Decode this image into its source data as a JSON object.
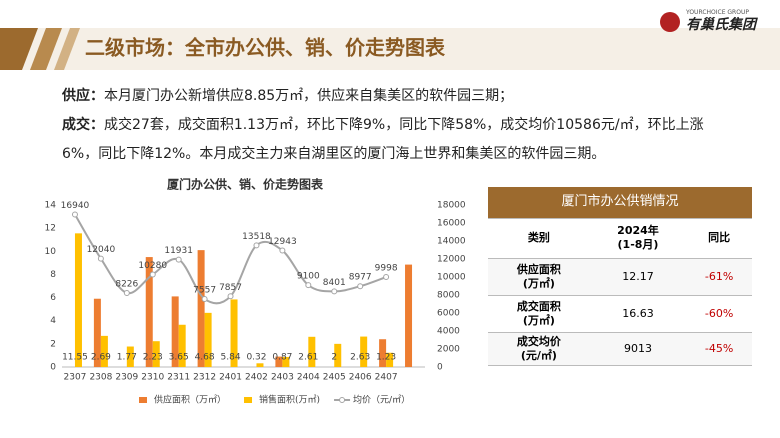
{
  "header": {
    "title": "二级市场：全市办公供、销、价走势图表",
    "logo": "有巢氏集团",
    "logo_sub": "YOURCHOICE GROUP"
  },
  "paragraphs": [
    {
      "label": "供应：",
      "text": "本月厦门办公新增供应8.85万㎡，供应来自集美区的软件园三期；"
    },
    {
      "label": "成交：",
      "text": "成交27套，成交面积1.13万㎡，环比下降9%，同比下降58%，成交均价10586元/㎡，环比上涨6%，同比下降12%。本月成交主力来自湖里区的厦门海上世界和集美区的软件园三期。"
    }
  ],
  "chart_data": {
    "type": "bar",
    "title": "厦门办公供、销、价走势图表",
    "categories": [
      "2307",
      "2308",
      "2309",
      "2310",
      "2311",
      "2312",
      "2401",
      "2402",
      "2403",
      "2404",
      "2405",
      "2406",
      "2407",
      null
    ],
    "series": [
      {
        "name": "供应面积（万㎡）",
        "color": "#ed7d31",
        "values": [
          0,
          5.9,
          0,
          9.5,
          6.1,
          10.1,
          0,
          0,
          0.9,
          0,
          0,
          0,
          2.4,
          8.85
        ]
      },
      {
        "name": "销售面积(万㎡)",
        "color": "#ffc000",
        "values": [
          11.55,
          2.69,
          1.77,
          2.23,
          3.65,
          4.68,
          5.84,
          0.32,
          0.87,
          2.61,
          2,
          2.63,
          1.23,
          null
        ]
      },
      {
        "name": "均价（元/㎡）",
        "color": "#a5a5a5",
        "type": "line",
        "axis": "y2",
        "values": [
          16940,
          12040,
          8226,
          10280,
          11931,
          7557,
          7857,
          13518,
          12943,
          9100,
          8401,
          8977,
          9998,
          null
        ]
      }
    ],
    "ylim": [
      0,
      14
    ],
    "yticks": [
      0,
      2,
      4,
      6,
      8,
      10,
      12,
      14
    ],
    "y2lim": [
      0,
      18000
    ],
    "y2ticks": [
      0,
      2000,
      4000,
      6000,
      8000,
      10000,
      12000,
      14000,
      16000,
      18000
    ]
  },
  "table": {
    "title": "厦门市办公供销情况",
    "header": [
      "类别",
      "2024年\n(1-8月)",
      "同比"
    ],
    "rows": [
      [
        "供应面积\n(万㎡)",
        "12.17",
        "-61%"
      ],
      [
        "成交面积\n(万㎡)",
        "16.63",
        "-60%"
      ],
      [
        "成交均价\n(元/㎡)",
        "9013",
        "-45%"
      ]
    ]
  }
}
